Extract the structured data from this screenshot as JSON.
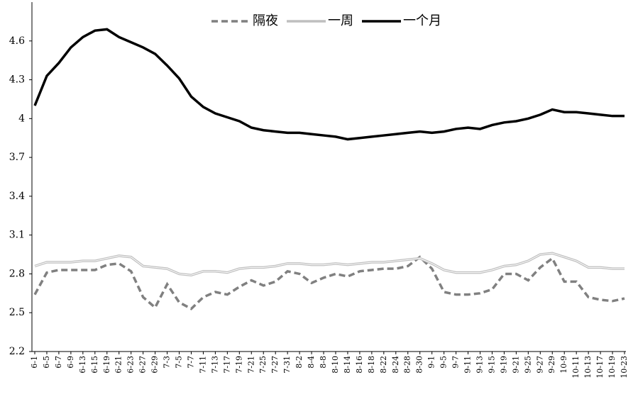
{
  "chart_data": {
    "type": "line",
    "categories": [
      "6-1",
      "6-5",
      "6-7",
      "6-9",
      "6-13",
      "6-15",
      "6-19",
      "6-21",
      "6-23",
      "6-27",
      "6-29",
      "7-3",
      "7-5",
      "7-7",
      "7-11",
      "7-13",
      "7-17",
      "7-19",
      "7-21",
      "7-25",
      "7-27",
      "7-31",
      "8-2",
      "8-4",
      "8-8",
      "8-10",
      "8-14",
      "8-16",
      "8-18",
      "8-22",
      "8-24",
      "8-28",
      "8-30",
      "9-1",
      "9-5",
      "9-7",
      "9-11",
      "9-13",
      "9-15",
      "9-19",
      "9-21",
      "9-25",
      "9-27",
      "9-29",
      "10-9",
      "10-11",
      "10-13",
      "10-17",
      "10-19",
      "10-23"
    ],
    "series": [
      {
        "name": "隔夜",
        "color": "#808080",
        "dash": true,
        "values": [
          2.64,
          2.81,
          2.83,
          2.83,
          2.83,
          2.83,
          2.87,
          2.88,
          2.82,
          2.62,
          2.54,
          2.72,
          2.58,
          2.53,
          2.62,
          2.66,
          2.64,
          2.7,
          2.75,
          2.71,
          2.74,
          2.82,
          2.8,
          2.73,
          2.77,
          2.8,
          2.78,
          2.82,
          2.83,
          2.84,
          2.84,
          2.86,
          2.93,
          2.84,
          2.66,
          2.64,
          2.64,
          2.65,
          2.68,
          2.8,
          2.8,
          2.75,
          2.85,
          2.92,
          2.74,
          2.74,
          2.62,
          2.6,
          2.59,
          2.61
        ]
      },
      {
        "name": "一周",
        "color": "#bfbfbf",
        "dash": false,
        "values": [
          2.86,
          2.89,
          2.89,
          2.89,
          2.9,
          2.9,
          2.92,
          2.94,
          2.93,
          2.86,
          2.85,
          2.84,
          2.8,
          2.79,
          2.82,
          2.82,
          2.81,
          2.84,
          2.85,
          2.85,
          2.86,
          2.88,
          2.88,
          2.87,
          2.87,
          2.88,
          2.87,
          2.88,
          2.89,
          2.89,
          2.9,
          2.91,
          2.92,
          2.88,
          2.83,
          2.81,
          2.81,
          2.81,
          2.83,
          2.86,
          2.87,
          2.9,
          2.95,
          2.96,
          2.93,
          2.9,
          2.85,
          2.85,
          2.84,
          2.84
        ]
      },
      {
        "name": "一个月",
        "color": "#000000",
        "dash": false,
        "values": [
          4.1,
          4.33,
          4.43,
          4.55,
          4.63,
          4.68,
          4.69,
          4.63,
          4.59,
          4.55,
          4.5,
          4.41,
          4.31,
          4.17,
          4.09,
          4.04,
          4.01,
          3.98,
          3.93,
          3.91,
          3.9,
          3.89,
          3.89,
          3.88,
          3.87,
          3.86,
          3.84,
          3.85,
          3.86,
          3.87,
          3.88,
          3.89,
          3.9,
          3.89,
          3.9,
          3.92,
          3.93,
          3.92,
          3.95,
          3.97,
          3.98,
          4.0,
          4.03,
          4.07,
          4.05,
          4.05,
          4.04,
          4.03,
          4.02,
          4.02
        ]
      }
    ],
    "ylim": [
      2.2,
      4.9
    ],
    "yticks": [
      2.2,
      2.5,
      2.8,
      3.1,
      3.4,
      3.7,
      4,
      4.3,
      4.6
    ],
    "grid": false,
    "legend": "top"
  }
}
